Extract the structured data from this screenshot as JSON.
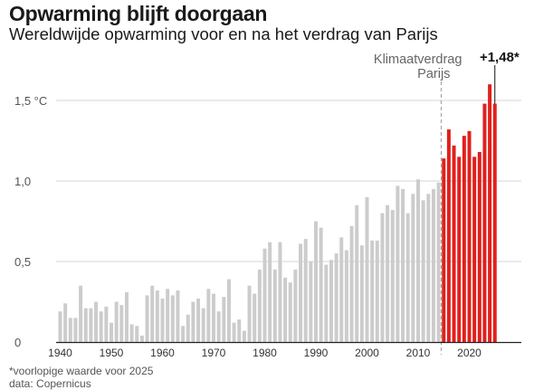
{
  "header": {
    "title": "Opwarming blijft doorgaan",
    "subtitle": "Wereldwijde opwarming voor en na het verdrag van Parijs"
  },
  "footer": {
    "footnote": "*voorlopige waarde voor 2025",
    "source": "data: Copernicus"
  },
  "annotations": {
    "agreement_label_line1": "Klimaatverdrag",
    "agreement_label_line2": "Parijs",
    "latest_value_label": "+1,48*"
  },
  "colors": {
    "before": "#cccccc",
    "after": "#e0201c",
    "text": "#1a1a1a",
    "grid": "#c8c8c8",
    "axis": "#222222",
    "dashed": "#9a9a9a"
  },
  "chart_data": {
    "type": "bar",
    "title": "Opwarming blijft doorgaan",
    "subtitle": "Wereldwijde opwarming voor en na het verdrag van Parijs",
    "x_tick_labels": [
      "1940",
      "1950",
      "1960",
      "1970",
      "1980",
      "1990",
      "2000",
      "2010",
      "2020"
    ],
    "y_tick_labels": [
      "0",
      "0,5",
      "1,0",
      "1,5 °C"
    ],
    "ylim": [
      0,
      1.7
    ],
    "grid": true,
    "agreement_year": 2015,
    "x": [
      1940,
      1941,
      1942,
      1943,
      1944,
      1945,
      1946,
      1947,
      1948,
      1949,
      1950,
      1951,
      1952,
      1953,
      1954,
      1955,
      1956,
      1957,
      1958,
      1959,
      1960,
      1961,
      1962,
      1963,
      1964,
      1965,
      1966,
      1967,
      1968,
      1969,
      1970,
      1971,
      1972,
      1973,
      1974,
      1975,
      1976,
      1977,
      1978,
      1979,
      1980,
      1981,
      1982,
      1983,
      1984,
      1985,
      1986,
      1987,
      1988,
      1989,
      1990,
      1991,
      1992,
      1993,
      1994,
      1995,
      1996,
      1997,
      1998,
      1999,
      2000,
      2001,
      2002,
      2003,
      2004,
      2005,
      2006,
      2007,
      2008,
      2009,
      2010,
      2011,
      2012,
      2013,
      2014,
      2015,
      2016,
      2017,
      2018,
      2019,
      2020,
      2021,
      2022,
      2023,
      2024,
      2025
    ],
    "values": [
      0.19,
      0.24,
      0.15,
      0.15,
      0.35,
      0.21,
      0.21,
      0.25,
      0.19,
      0.22,
      0.12,
      0.25,
      0.23,
      0.31,
      0.11,
      0.1,
      0.04,
      0.29,
      0.35,
      0.32,
      0.27,
      0.33,
      0.29,
      0.32,
      0.1,
      0.17,
      0.25,
      0.27,
      0.21,
      0.33,
      0.3,
      0.19,
      0.28,
      0.39,
      0.12,
      0.14,
      0.07,
      0.35,
      0.3,
      0.45,
      0.58,
      0.62,
      0.45,
      0.62,
      0.4,
      0.37,
      0.45,
      0.61,
      0.64,
      0.5,
      0.75,
      0.71,
      0.48,
      0.51,
      0.55,
      0.65,
      0.57,
      0.72,
      0.85,
      0.6,
      0.9,
      0.63,
      0.63,
      0.8,
      0.85,
      0.82,
      0.97,
      0.95,
      0.8,
      0.92,
      1.01,
      0.88,
      0.92,
      0.95,
      0.99,
      1.14,
      1.32,
      1.22,
      1.15,
      1.28,
      1.31,
      1.15,
      1.18,
      1.48,
      1.6,
      1.48
    ]
  }
}
